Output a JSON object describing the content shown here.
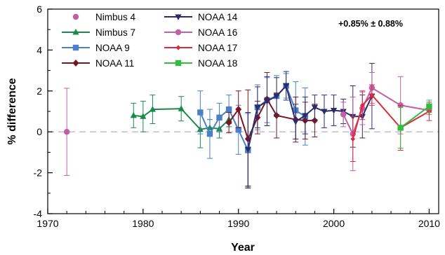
{
  "chart_data": {
    "type": "line",
    "title": "",
    "xlabel": "Year",
    "ylabel": "% difference",
    "xlim": [
      1970,
      2011
    ],
    "ylim": [
      -4,
      6
    ],
    "xticks": [
      "1970",
      "1980",
      "1990",
      "2000",
      "2010"
    ],
    "yticks": [
      "-4",
      "-2",
      "0",
      "2",
      "4",
      "6"
    ],
    "reference_line": {
      "y": 0,
      "style": "dashed",
      "color": "#aaaaaa"
    },
    "annotation": "+0.85% ± 0.88%",
    "legend_position": "top-left",
    "series": [
      {
        "name": "Nimbus 4",
        "color": "#c060a0",
        "marker": "circle",
        "line": false,
        "points": [
          [
            1972,
            0.0,
            2.13
          ]
        ]
      },
      {
        "name": "Nimbus 7",
        "color": "#1a8a4a",
        "marker": "triangle-up",
        "line": true,
        "points": [
          [
            1979,
            0.8,
            0.6
          ],
          [
            1980,
            0.75,
            0.75
          ],
          [
            1981,
            1.1,
            0.7
          ],
          [
            1984,
            1.13,
            0.6
          ],
          [
            1986,
            0.12,
            0.9
          ],
          [
            1987,
            0.2,
            0.4
          ],
          [
            1988,
            0.15,
            0.45
          ],
          [
            1989,
            0.6,
            0.35
          ]
        ]
      },
      {
        "name": "NOAA 9",
        "color": "#4a80c8",
        "marker": "square",
        "line": true,
        "points": [
          [
            1986,
            0.95,
            1.05
          ],
          [
            1987,
            -0.1,
            1.2
          ],
          [
            1988,
            0.7,
            0.7
          ],
          [
            1989,
            1.1,
            0.7
          ],
          [
            1990,
            0.1,
            1.2
          ],
          [
            1991,
            -0.9,
            1.8
          ],
          [
            1992,
            1.2,
            1.1
          ],
          [
            1993,
            1.55,
            1.1
          ],
          [
            1994,
            1.75,
            1.0
          ],
          [
            1995,
            2.25,
            0.6
          ],
          [
            1996,
            1.05,
            1.4
          ],
          [
            1997,
            0.75,
            1.4
          ]
        ]
      },
      {
        "name": "NOAA 11",
        "color": "#7a1522",
        "marker": "diamond",
        "line": true,
        "points": [
          [
            1989,
            0.45,
            0.5
          ],
          [
            1990,
            1.1,
            0.9
          ],
          [
            1991,
            -0.35,
            2.4
          ],
          [
            1992,
            0.7,
            0.8
          ],
          [
            1993,
            1.6,
            1.3
          ],
          [
            1994,
            0.8,
            1.1
          ],
          [
            1996,
            0.6,
            1.1
          ],
          [
            1997,
            0.55,
            0.9
          ],
          [
            1998,
            0.55,
            0.8
          ]
        ]
      },
      {
        "name": "NOAA 14",
        "color": "#2c2c6c",
        "marker": "triangle-down",
        "line": true,
        "points": [
          [
            1991,
            -0.85,
            1.8
          ],
          [
            1992,
            1.2,
            1.0
          ],
          [
            1993,
            1.5,
            1.2
          ],
          [
            1994,
            1.75,
            0.9
          ],
          [
            1995,
            2.25,
            0.7
          ],
          [
            1996,
            0.5,
            0.85
          ],
          [
            1997,
            0.8,
            0.9
          ],
          [
            1998,
            1.2,
            0.6
          ],
          [
            1999,
            1.0,
            0.8
          ],
          [
            2000,
            1.05,
            0.75
          ],
          [
            2001,
            1.0,
            0.6
          ],
          [
            2002,
            0.75,
            1.5
          ],
          [
            2003,
            0.75,
            1.05
          ],
          [
            2004,
            1.75,
            1.6
          ]
        ]
      },
      {
        "name": "NOAA 16",
        "color": "#c060a8",
        "marker": "circle",
        "line": true,
        "points": [
          [
            2001,
            0.85,
            0.6
          ],
          [
            2002,
            -0.1,
            1.8
          ],
          [
            2003,
            1.15,
            0.8
          ],
          [
            2004,
            2.15,
            0.75
          ],
          [
            2007,
            1.3,
            1.4
          ],
          [
            2010,
            1.05,
            0.2
          ]
        ]
      },
      {
        "name": "NOAA 17",
        "color": "#dd2a3a",
        "marker": "diamond-small",
        "line": true,
        "points": [
          [
            2002,
            -0.35,
            1.1
          ],
          [
            2003,
            1.3,
            0.7
          ],
          [
            2004,
            1.8,
            0.5
          ],
          [
            2007,
            0.2,
            1.1
          ],
          [
            2010,
            1.0,
            0.45
          ]
        ]
      },
      {
        "name": "NOAA 18",
        "color": "#33bb44",
        "marker": "square",
        "line": true,
        "points": [
          [
            2007,
            0.2,
            1.0
          ],
          [
            2010,
            1.25,
            0.3
          ]
        ]
      }
    ]
  }
}
